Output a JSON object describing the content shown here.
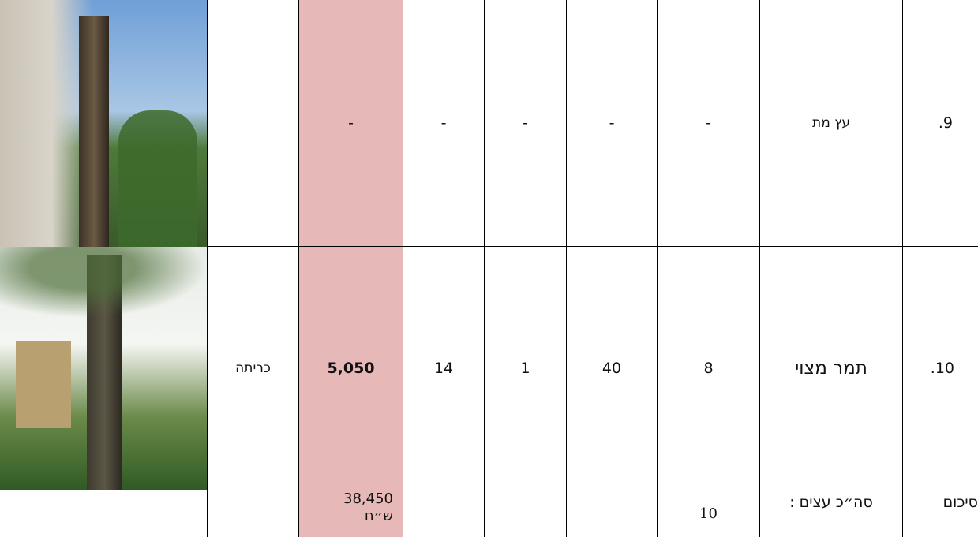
{
  "table": {
    "rows": [
      {
        "number": "9.",
        "name": "עץ מת",
        "c1": "-",
        "c2": "-",
        "c3": "-",
        "c4": "-",
        "value": "-"
      },
      {
        "number": "10.",
        "name": "תמר מצוי",
        "c1": "8",
        "c2": "40",
        "c3": "1",
        "c4": "14",
        "value": "5,050",
        "action": "כריתה"
      }
    ],
    "summary": {
      "label": "סיכום",
      "count_label": "סה״כ עצים :",
      "count": "10",
      "amount": "38,450",
      "currency": "ש״ח"
    }
  }
}
